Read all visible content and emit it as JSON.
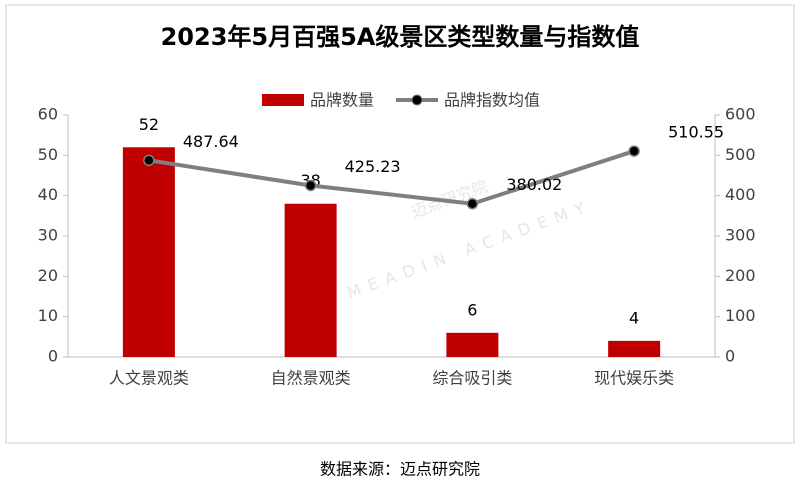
{
  "chart_data": {
    "type": "bar",
    "title": "2023年5月百强5A级景区类型数量与指数值",
    "categories": [
      "人文景观类",
      "自然景观类",
      "综合吸引类",
      "现代娱乐类"
    ],
    "series": [
      {
        "name": "品牌数量",
        "type": "bar",
        "color": "#c00000",
        "values": [
          52,
          38,
          6,
          4
        ]
      },
      {
        "name": "品牌指数均值",
        "type": "line",
        "axis": "y2",
        "color": "#7f7f7f",
        "values": [
          487.64,
          425.23,
          380.02,
          510.55
        ]
      }
    ],
    "ylim": [
      0,
      60
    ],
    "yticks": [
      0,
      10,
      20,
      30,
      40,
      50,
      60
    ],
    "y2lim": [
      0,
      600
    ],
    "y2ticks": [
      0,
      100,
      200,
      300,
      400,
      500,
      600
    ],
    "legend": "top",
    "watermark": "迈点研究院",
    "watermark_sub": "MEADIN ACADEMY",
    "source": "数据来源：迈点研究院"
  }
}
